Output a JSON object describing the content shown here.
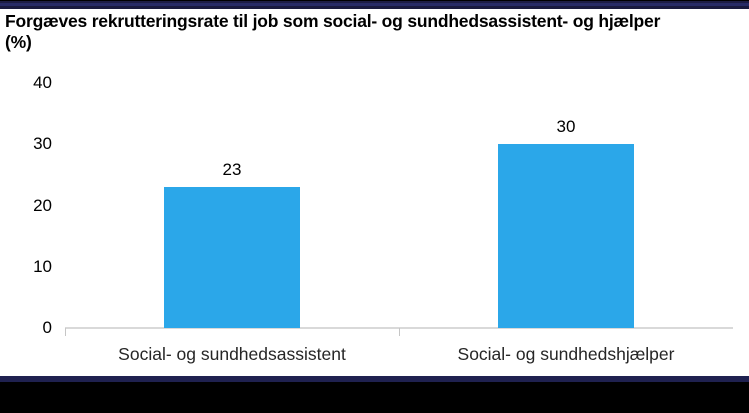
{
  "header": {
    "title_line1": "Forgæves rekrutteringsrate til job som social- og sundhedsassistent- og hjælper",
    "title_line2": "(%)"
  },
  "chart_data": {
    "type": "bar",
    "title": "Forgæves rekrutteringsrate til job som social- og sundhedsassistent- og hjælper (%)",
    "categories": [
      "Social- og sundhedsassistent",
      "Social- og sundhedshjælper"
    ],
    "values": [
      23,
      30
    ],
    "value_labels": [
      "23",
      "30"
    ],
    "yticks": [
      0,
      10,
      20,
      30,
      40
    ],
    "ylim": [
      0,
      40
    ],
    "xlabel": "",
    "ylabel": "",
    "grid": false,
    "legend": false,
    "bar_color": "#2ba7e9",
    "axis_line_color": "#d9d9d9",
    "tick_label_color": "#000000",
    "category_label_color": "#262626"
  },
  "frame": {
    "top_strip_color": "#23265b",
    "bottom_strip_navy_color": "#1f2150",
    "bottom_strip_black_color": "#000000"
  }
}
